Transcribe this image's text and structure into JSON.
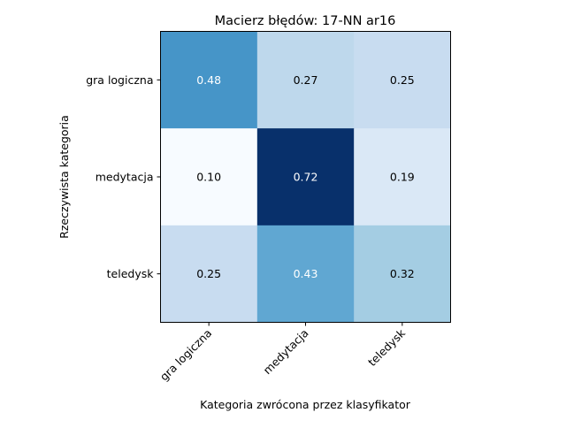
{
  "chart_data": {
    "type": "heatmap",
    "title": "Macierz błędów: 17-NN ar16",
    "xlabel": "Kategoria zwrócona przez klasyfikator",
    "ylabel": "Rzeczywista kategoria",
    "x_categories": [
      "gra logiczna",
      "medytacja",
      "teledysk"
    ],
    "y_categories": [
      "gra logiczna",
      "medytacja",
      "teledysk"
    ],
    "values": [
      [
        0.48,
        0.27,
        0.25
      ],
      [
        0.1,
        0.72,
        0.19
      ],
      [
        0.25,
        0.43,
        0.32
      ]
    ],
    "value_labels": [
      [
        "0.48",
        "0.27",
        "0.25"
      ],
      [
        "0.10",
        "0.72",
        "0.19"
      ],
      [
        "0.25",
        "0.43",
        "0.32"
      ]
    ],
    "colormap": "Blues",
    "color_range": [
      0.1,
      0.72
    ],
    "annotation_colors": {
      "dark_background_text": "#ffffff",
      "light_background_text": "#000000"
    },
    "x_tick_rotation_deg": 45,
    "grid": false,
    "legend": "none"
  }
}
